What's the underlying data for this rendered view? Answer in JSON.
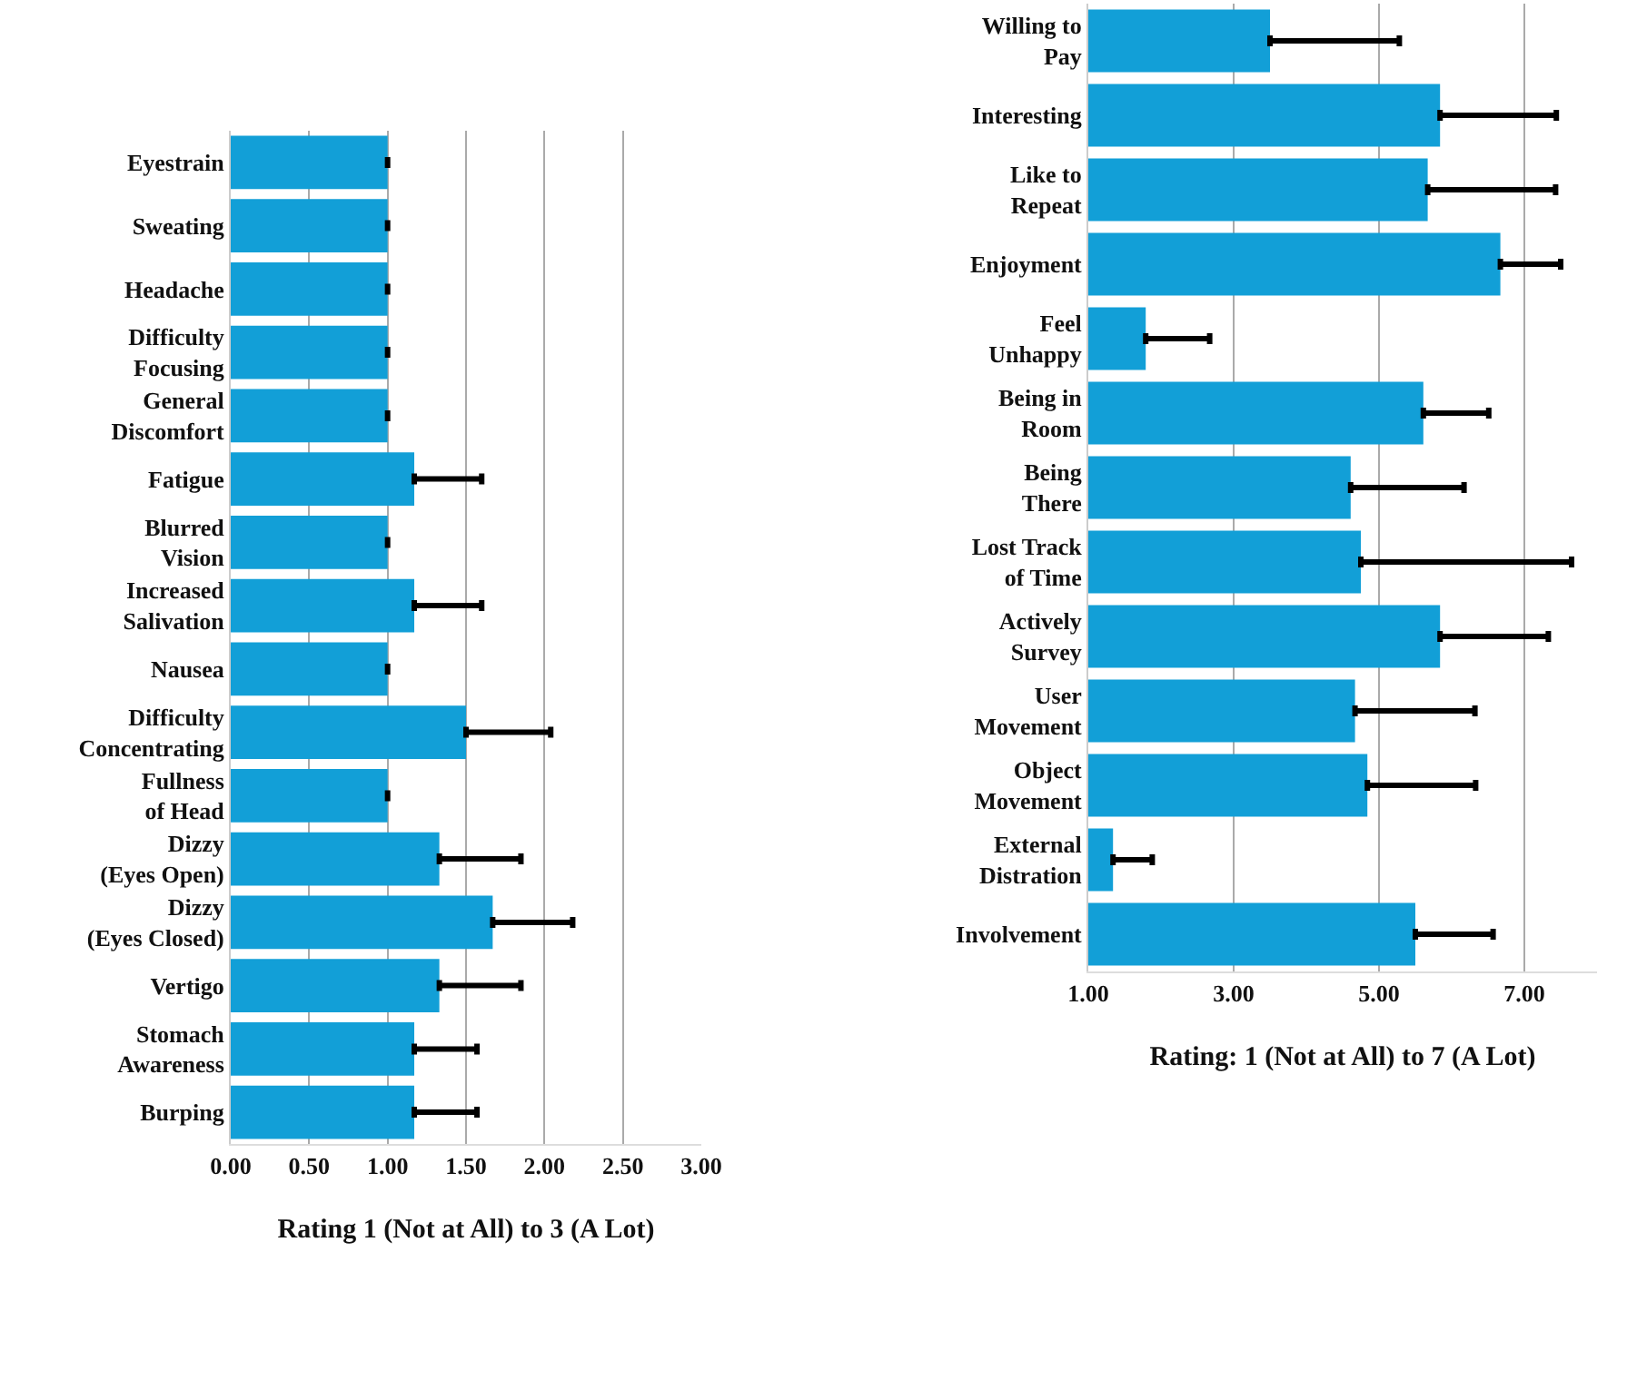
{
  "chart_data": [
    {
      "type": "bar",
      "orientation": "horizontal",
      "xlabel": "Rating 1 (Not at All) to 3 (A Lot)",
      "categories": [
        "Eyestrain",
        "Sweating",
        "Headache",
        "Difficulty\nFocusing",
        "General\nDiscomfort",
        "Fatigue",
        "Blurred\nVision",
        "Increased\nSalivation",
        "Nausea",
        "Difficulty\nConcentrating",
        "Fullness\nof Head",
        "Dizzy\n(Eyes Open)",
        "Dizzy\n(Eyes Closed)",
        "Vertigo",
        "Stomach\nAwareness",
        "Burping"
      ],
      "values": [
        1.0,
        1.0,
        1.0,
        1.0,
        1.0,
        1.17,
        1.0,
        1.17,
        1.0,
        1.5,
        1.0,
        1.33,
        1.67,
        1.33,
        1.17,
        1.17
      ],
      "errors": [
        [
          1.0,
          1.0
        ],
        [
          1.0,
          1.0
        ],
        [
          1.0,
          1.0
        ],
        [
          1.0,
          1.0
        ],
        [
          1.0,
          1.0
        ],
        [
          1.17,
          1.6
        ],
        [
          1.0,
          1.0
        ],
        [
          1.17,
          1.6
        ],
        [
          1.0,
          1.0
        ],
        [
          1.5,
          2.04
        ],
        [
          1.0,
          1.0
        ],
        [
          1.33,
          1.85
        ],
        [
          1.67,
          2.18
        ],
        [
          1.33,
          1.85
        ],
        [
          1.17,
          1.57
        ],
        [
          1.17,
          1.57
        ]
      ],
      "color": "#129fd7",
      "xlim": [
        0,
        3
      ],
      "xticks": [
        {
          "value": 0,
          "label": "0.00"
        },
        {
          "value": 0.5,
          "label": "0.50"
        },
        {
          "value": 1,
          "label": "1.00"
        },
        {
          "value": 1.5,
          "label": "1.50"
        },
        {
          "value": 2,
          "label": "2.00"
        },
        {
          "value": 2.5,
          "label": "2.50"
        },
        {
          "value": 3,
          "label": "3.00"
        }
      ],
      "grid": "x"
    },
    {
      "type": "bar",
      "orientation": "horizontal",
      "xlabel": "Rating: 1 (Not at All) to 7 (A Lot)",
      "categories": [
        "Willing to\nPay",
        "Interesting",
        "Like to\nRepeat",
        "Enjoyment",
        "Feel\nUnhappy",
        "Being in\nRoom",
        "Being\nThere",
        "Lost Track\nof Time",
        "Actively\nSurvey",
        "User\nMovement",
        "Object\nMovement",
        "External\nDistration",
        "Involvement"
      ],
      "values": [
        3.5,
        5.84,
        5.67,
        6.67,
        1.79,
        5.61,
        4.61,
        4.75,
        5.84,
        4.67,
        4.84,
        1.34,
        5.5
      ],
      "errors": [
        [
          3.5,
          5.28
        ],
        [
          5.84,
          7.44
        ],
        [
          5.67,
          7.43
        ],
        [
          6.67,
          7.5
        ],
        [
          1.79,
          2.67
        ],
        [
          5.61,
          6.51
        ],
        [
          4.61,
          6.17
        ],
        [
          4.75,
          7.65
        ],
        [
          5.84,
          7.33
        ],
        [
          4.67,
          6.32
        ],
        [
          4.84,
          6.33
        ],
        [
          1.34,
          1.88
        ],
        [
          5.5,
          6.57
        ]
      ],
      "color": "#129fd7",
      "xlim": [
        1,
        8
      ],
      "xticks": [
        {
          "value": 1,
          "label": "1.00"
        },
        {
          "value": 3,
          "label": "3.00"
        },
        {
          "value": 5,
          "label": "5.00"
        },
        {
          "value": 7,
          "label": "7.00"
        }
      ],
      "grid": "x"
    }
  ]
}
